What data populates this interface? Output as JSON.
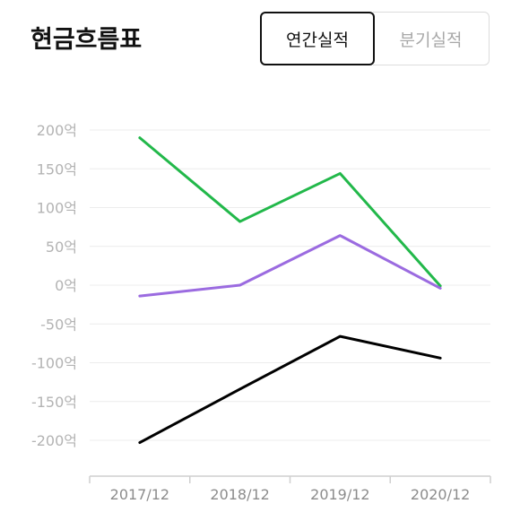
{
  "header": {
    "title": "현금흐름표",
    "tabs": [
      {
        "label": "연간실적",
        "active": true
      },
      {
        "label": "분기실적",
        "active": false
      }
    ]
  },
  "chart_data": {
    "type": "line",
    "categories": [
      "2017/12",
      "2018/12",
      "2019/12",
      "2020/12"
    ],
    "ylim": [
      -200,
      200
    ],
    "yticks": [
      200,
      150,
      100,
      50,
      0,
      -50,
      -100,
      -150,
      -200
    ],
    "ytick_labels": [
      "200억",
      "150억",
      "100억",
      "50억",
      "0억",
      "-50억",
      "-100억",
      "-150억",
      "-200억"
    ],
    "grid": true,
    "series": [
      {
        "color": "#22b84a",
        "values": [
          190,
          82,
          144,
          -1
        ]
      },
      {
        "color": "#9b6be0",
        "values": [
          -14,
          0,
          64,
          -4
        ]
      },
      {
        "color": "#000000",
        "values": [
          -203,
          -134,
          -66,
          -94
        ]
      }
    ]
  }
}
